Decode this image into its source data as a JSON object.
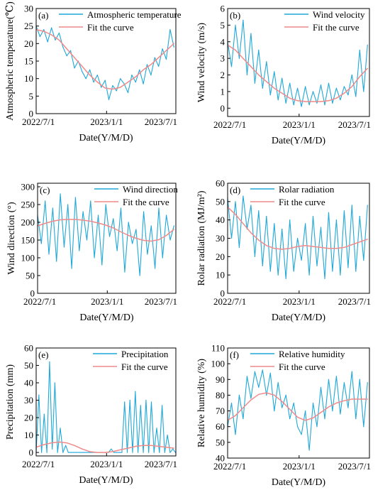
{
  "page": {
    "background": "#ffffff"
  },
  "colors": {
    "raw": "#1fa8d8",
    "fit": "#f08a8a",
    "axis": "#000000"
  },
  "chart_data": [
    {
      "type": "line",
      "panel_label": "(a)",
      "ylabel": "Atmospheric temperature(℃)",
      "xlabel": "Date(Y/M/D)",
      "x_ticks": [
        "2022/7/1",
        "2023/1/1",
        "2023/7/1"
      ],
      "ylim": [
        0,
        30
      ],
      "y_ticks": [
        0,
        5,
        10,
        15,
        20,
        25,
        30
      ],
      "legend_position": "top-center",
      "series": [
        {
          "name": "Atmospheric temperature",
          "kind": "raw",
          "x": [
            "2022-07-01",
            "2022-07-11",
            "2022-07-21",
            "2022-07-31",
            "2022-08-10",
            "2022-08-20",
            "2022-08-30",
            "2022-09-09",
            "2022-09-19",
            "2022-09-29",
            "2022-10-09",
            "2022-10-19",
            "2022-10-29",
            "2022-11-08",
            "2022-11-18",
            "2022-11-28",
            "2022-12-08",
            "2022-12-18",
            "2022-12-28",
            "2023-01-07",
            "2023-01-17",
            "2023-01-27",
            "2023-02-06",
            "2023-02-16",
            "2023-02-26",
            "2023-03-08",
            "2023-03-18",
            "2023-03-28",
            "2023-04-07",
            "2023-04-17",
            "2023-04-27",
            "2023-05-07",
            "2023-05-17",
            "2023-05-27",
            "2023-06-06",
            "2023-06-16",
            "2023-06-26"
          ],
          "y": [
            25.0,
            22.0,
            24.0,
            20.5,
            24.5,
            21.0,
            23.0,
            19.0,
            16.5,
            18.0,
            13.0,
            15.0,
            12.0,
            10.0,
            12.5,
            9.0,
            11.0,
            7.5,
            9.5,
            4.0,
            8.0,
            6.5,
            10.0,
            8.5,
            6.0,
            11.0,
            9.0,
            12.5,
            8.5,
            14.0,
            11.0,
            16.0,
            13.5,
            18.5,
            15.5,
            24.0,
            19.0
          ]
        },
        {
          "name": "Fit the curve",
          "kind": "fit",
          "x": [
            "2022-07-01",
            "2022-07-21",
            "2022-08-10",
            "2022-08-30",
            "2022-09-19",
            "2022-10-09",
            "2022-10-29",
            "2022-11-18",
            "2022-12-08",
            "2022-12-28",
            "2023-01-17",
            "2023-02-06",
            "2023-02-26",
            "2023-03-18",
            "2023-04-07",
            "2023-04-27",
            "2023-05-17",
            "2023-06-06",
            "2023-06-26"
          ],
          "y": [
            24.0,
            23.5,
            22.5,
            21.0,
            18.5,
            16.0,
            13.5,
            11.0,
            9.0,
            7.3,
            7.0,
            7.5,
            9.0,
            10.5,
            12.5,
            14.0,
            16.0,
            18.0,
            20.0
          ]
        }
      ]
    },
    {
      "type": "line",
      "panel_label": "(b)",
      "ylabel": "Wind velocity (m/s)",
      "xlabel": "Date(Y/M/D)",
      "x_ticks": [
        "2022/7/1",
        "2023/1/1",
        "2023/7/1"
      ],
      "ylim": [
        -0.5,
        6
      ],
      "y_ticks": [
        0,
        1,
        2,
        3,
        4,
        5,
        6
      ],
      "legend_position": "top-right",
      "series": [
        {
          "name": "Wind velocity",
          "kind": "raw",
          "x": [
            "2022-07-01",
            "2022-07-11",
            "2022-07-21",
            "2022-07-31",
            "2022-08-10",
            "2022-08-20",
            "2022-08-30",
            "2022-09-09",
            "2022-09-19",
            "2022-09-29",
            "2022-10-09",
            "2022-10-19",
            "2022-10-29",
            "2022-11-08",
            "2022-11-18",
            "2022-11-28",
            "2022-12-08",
            "2022-12-18",
            "2022-12-28",
            "2023-01-07",
            "2023-01-17",
            "2023-01-27",
            "2023-02-06",
            "2023-02-16",
            "2023-02-26",
            "2023-03-08",
            "2023-03-18",
            "2023-03-28",
            "2023-04-07",
            "2023-04-17",
            "2023-04-27",
            "2023-05-07",
            "2023-05-17",
            "2023-05-27",
            "2023-06-06",
            "2023-06-16",
            "2023-06-26"
          ],
          "y": [
            4.0,
            2.5,
            5.0,
            3.0,
            5.3,
            2.0,
            4.5,
            1.5,
            3.5,
            1.2,
            2.8,
            0.8,
            2.2,
            0.5,
            1.8,
            0.3,
            1.5,
            0.2,
            1.2,
            0.1,
            1.3,
            0.2,
            1.0,
            0.3,
            1.4,
            0.2,
            1.5,
            0.3,
            1.2,
            0.5,
            1.3,
            0.8,
            2.0,
            0.7,
            3.5,
            1.0,
            3.8
          ]
        },
        {
          "name": "Fit the curve",
          "kind": "fit",
          "x": [
            "2022-07-01",
            "2022-07-21",
            "2022-08-10",
            "2022-08-30",
            "2022-09-19",
            "2022-10-09",
            "2022-10-29",
            "2022-11-18",
            "2022-12-08",
            "2022-12-28",
            "2023-01-17",
            "2023-02-06",
            "2023-02-26",
            "2023-03-18",
            "2023-04-07",
            "2023-04-27",
            "2023-05-17",
            "2023-06-06",
            "2023-06-26"
          ],
          "y": [
            3.8,
            3.5,
            3.0,
            2.5,
            2.0,
            1.6,
            1.2,
            0.9,
            0.6,
            0.45,
            0.4,
            0.4,
            0.4,
            0.45,
            0.6,
            0.9,
            1.3,
            1.9,
            2.4
          ]
        }
      ]
    },
    {
      "type": "line",
      "panel_label": "(c)",
      "ylabel": "Wind direction (°)",
      "xlabel": "Date(Y/M/D)",
      "x_ticks": [
        "2022/7/1",
        "2023/1/1",
        "2023/7/1"
      ],
      "ylim": [
        0,
        310
      ],
      "y_ticks": [
        0,
        50,
        100,
        150,
        200,
        250,
        300
      ],
      "legend_position": "top-right",
      "series": [
        {
          "name": "Wind direction",
          "kind": "raw",
          "x": [
            "2022-07-01",
            "2022-07-11",
            "2022-07-21",
            "2022-07-31",
            "2022-08-10",
            "2022-08-20",
            "2022-08-30",
            "2022-09-09",
            "2022-09-19",
            "2022-09-29",
            "2022-10-09",
            "2022-10-19",
            "2022-10-29",
            "2022-11-08",
            "2022-11-18",
            "2022-11-28",
            "2022-12-08",
            "2022-12-18",
            "2022-12-28",
            "2023-01-07",
            "2023-01-17",
            "2023-01-27",
            "2023-02-06",
            "2023-02-16",
            "2023-02-26",
            "2023-03-08",
            "2023-03-18",
            "2023-03-28",
            "2023-04-07",
            "2023-04-17",
            "2023-04-27",
            "2023-05-07",
            "2023-05-17",
            "2023-05-27",
            "2023-06-06",
            "2023-06-16",
            "2023-06-26"
          ],
          "y": [
            220,
            140,
            260,
            110,
            240,
            90,
            280,
            130,
            250,
            70,
            270,
            120,
            230,
            150,
            260,
            100,
            220,
            80,
            250,
            160,
            210,
            120,
            240,
            60,
            200,
            140,
            180,
            50,
            230,
            110,
            190,
            70,
            240,
            100,
            220,
            150,
            190
          ]
        },
        {
          "name": "Fit the curve",
          "kind": "fit",
          "x": [
            "2022-07-01",
            "2022-07-21",
            "2022-08-10",
            "2022-08-30",
            "2022-09-19",
            "2022-10-09",
            "2022-10-29",
            "2022-11-18",
            "2022-12-08",
            "2022-12-28",
            "2023-01-17",
            "2023-02-06",
            "2023-02-26",
            "2023-03-18",
            "2023-04-07",
            "2023-04-27",
            "2023-05-17",
            "2023-06-06",
            "2023-06-26"
          ],
          "y": [
            190,
            197,
            203,
            207,
            208,
            208,
            206,
            203,
            198,
            192,
            184,
            173,
            163,
            155,
            149,
            147,
            151,
            163,
            180
          ]
        }
      ]
    },
    {
      "type": "line",
      "panel_label": "(d)",
      "ylabel": "Rolar radiation (MJ/m²)",
      "xlabel": "Date(Y/M/D)",
      "x_ticks": [
        "2022/7/1",
        "2023/1/1",
        "2023/7/1"
      ],
      "ylim": [
        0,
        60
      ],
      "y_ticks": [
        0,
        10,
        20,
        30,
        40,
        50,
        60
      ],
      "legend_position": "top-center",
      "series": [
        {
          "name": "Rolar radiation",
          "kind": "raw",
          "x": [
            "2022-07-01",
            "2022-07-11",
            "2022-07-21",
            "2022-07-31",
            "2022-08-10",
            "2022-08-20",
            "2022-08-30",
            "2022-09-09",
            "2022-09-19",
            "2022-09-29",
            "2022-10-09",
            "2022-10-19",
            "2022-10-29",
            "2022-11-08",
            "2022-11-18",
            "2022-11-28",
            "2022-12-08",
            "2022-12-18",
            "2022-12-28",
            "2023-01-07",
            "2023-01-17",
            "2023-01-27",
            "2023-02-06",
            "2023-02-16",
            "2023-02-26",
            "2023-03-08",
            "2023-03-18",
            "2023-03-28",
            "2023-04-07",
            "2023-04-17",
            "2023-04-27",
            "2023-05-07",
            "2023-05-17",
            "2023-05-27",
            "2023-06-06",
            "2023-06-16",
            "2023-06-26"
          ],
          "y": [
            52,
            30,
            50,
            25,
            53,
            35,
            48,
            20,
            45,
            15,
            42,
            12,
            38,
            10,
            35,
            8,
            40,
            12,
            30,
            18,
            38,
            10,
            42,
            15,
            36,
            8,
            44,
            12,
            40,
            10,
            45,
            14,
            48,
            12,
            42,
            18,
            48
          ]
        },
        {
          "name": "Fit the curve",
          "kind": "fit",
          "x": [
            "2022-07-01",
            "2022-07-21",
            "2022-08-10",
            "2022-08-30",
            "2022-09-19",
            "2022-10-09",
            "2022-10-29",
            "2022-11-18",
            "2022-12-08",
            "2022-12-28",
            "2023-01-17",
            "2023-02-06",
            "2023-02-26",
            "2023-03-18",
            "2023-04-07",
            "2023-04-27",
            "2023-05-17",
            "2023-06-06",
            "2023-06-26"
          ],
          "y": [
            47,
            43,
            38,
            33,
            29,
            26,
            24.5,
            24,
            24.5,
            25.5,
            26,
            25.5,
            25,
            24.5,
            24.5,
            25,
            26.5,
            28,
            29.5
          ]
        }
      ]
    },
    {
      "type": "line",
      "panel_label": "(e)",
      "ylabel": "Precipitation (mm)",
      "xlabel": "Date(Y/M/D)",
      "x_ticks": [
        "2022/7/1",
        "2023/1/1",
        "2023/7/1"
      ],
      "ylim": [
        -2,
        60
      ],
      "y_ticks": [
        0,
        10,
        20,
        30,
        40,
        50,
        60
      ],
      "legend_position": "top-right",
      "series": [
        {
          "name": "Precipitation",
          "kind": "raw",
          "x": [
            "2022-07-01",
            "2022-07-08",
            "2022-07-15",
            "2022-07-22",
            "2022-07-29",
            "2022-08-05",
            "2022-08-12",
            "2022-08-19",
            "2022-08-26",
            "2022-09-02",
            "2022-09-09",
            "2022-09-16",
            "2022-09-23",
            "2022-09-30",
            "2022-10-07",
            "2022-10-14",
            "2022-10-21",
            "2022-10-28",
            "2022-11-04",
            "2022-11-11",
            "2022-11-18",
            "2022-11-25",
            "2022-12-02",
            "2022-12-09",
            "2022-12-16",
            "2022-12-23",
            "2022-12-30",
            "2023-01-06",
            "2023-01-13",
            "2023-01-20",
            "2023-01-27",
            "2023-02-03",
            "2023-02-10",
            "2023-02-17",
            "2023-02-24",
            "2023-03-03",
            "2023-03-10",
            "2023-03-17",
            "2023-03-24",
            "2023-03-31",
            "2023-04-07",
            "2023-04-14",
            "2023-04-21",
            "2023-04-28",
            "2023-05-05",
            "2023-05-12",
            "2023-05-19",
            "2023-05-26",
            "2023-06-02",
            "2023-06-09",
            "2023-06-16",
            "2023-06-23",
            "2023-06-30"
          ],
          "y": [
            0,
            33,
            0,
            22,
            0,
            52,
            2,
            40,
            0,
            14,
            0,
            4,
            0,
            0,
            0,
            0,
            0,
            0,
            0,
            0,
            0,
            0,
            0,
            0,
            0,
            0,
            0,
            0,
            2,
            0,
            0,
            0,
            0,
            29,
            0,
            30,
            0,
            35,
            0,
            27,
            0,
            30,
            0,
            29,
            0,
            14,
            0,
            27,
            0,
            10,
            0,
            2,
            0
          ]
        },
        {
          "name": "Fit the curve",
          "kind": "fit",
          "x": [
            "2022-07-01",
            "2022-07-21",
            "2022-08-10",
            "2022-08-30",
            "2022-09-19",
            "2022-10-09",
            "2022-10-29",
            "2022-11-18",
            "2022-12-08",
            "2022-12-28",
            "2023-01-17",
            "2023-02-06",
            "2023-02-26",
            "2023-03-18",
            "2023-04-07",
            "2023-04-27",
            "2023-05-17",
            "2023-06-06",
            "2023-06-26"
          ],
          "y": [
            3,
            4.5,
            5.5,
            6,
            5.5,
            4,
            2,
            0.5,
            0,
            0,
            0.5,
            1.5,
            2.5,
            3.5,
            4,
            4,
            3.5,
            3,
            2.5
          ]
        }
      ]
    },
    {
      "type": "line",
      "panel_label": "(f)",
      "ylabel": "Relative humidity (%)",
      "xlabel": "Date(Y/M/D)",
      "x_ticks": [
        "2022/7/1",
        "2023/1/1",
        "2023/7/1"
      ],
      "ylim": [
        40,
        110
      ],
      "y_ticks": [
        40,
        50,
        60,
        70,
        80,
        90,
        100,
        110
      ],
      "legend_position": "top-center",
      "series": [
        {
          "name": "Relative humidity",
          "kind": "raw",
          "x": [
            "2022-07-01",
            "2022-07-11",
            "2022-07-21",
            "2022-07-31",
            "2022-08-10",
            "2022-08-20",
            "2022-08-30",
            "2022-09-09",
            "2022-09-19",
            "2022-09-29",
            "2022-10-09",
            "2022-10-19",
            "2022-10-29",
            "2022-11-08",
            "2022-11-18",
            "2022-11-28",
            "2022-12-08",
            "2022-12-18",
            "2022-12-28",
            "2023-01-07",
            "2023-01-17",
            "2023-01-27",
            "2023-02-06",
            "2023-02-16",
            "2023-02-26",
            "2023-03-08",
            "2023-03-18",
            "2023-03-28",
            "2023-04-07",
            "2023-04-17",
            "2023-04-27",
            "2023-05-07",
            "2023-05-17",
            "2023-05-27",
            "2023-06-06",
            "2023-06-16",
            "2023-06-26"
          ],
          "y": [
            60,
            75,
            55,
            80,
            65,
            92,
            78,
            95,
            85,
            96,
            80,
            94,
            70,
            88,
            72,
            80,
            65,
            75,
            60,
            55,
            70,
            45,
            75,
            60,
            85,
            65,
            90,
            70,
            92,
            68,
            88,
            72,
            95,
            65,
            90,
            60,
            88
          ]
        },
        {
          "name": "Fit the curve",
          "kind": "fit",
          "x": [
            "2022-07-01",
            "2022-07-21",
            "2022-08-10",
            "2022-08-30",
            "2022-09-19",
            "2022-10-09",
            "2022-10-29",
            "2022-11-18",
            "2022-12-08",
            "2022-12-28",
            "2023-01-17",
            "2023-02-06",
            "2023-02-26",
            "2023-03-18",
            "2023-04-07",
            "2023-04-27",
            "2023-05-17",
            "2023-06-06",
            "2023-06-26"
          ],
          "y": [
            64,
            67,
            72,
            77,
            80.5,
            81.5,
            80,
            76,
            71,
            66,
            64,
            65.5,
            69,
            72.5,
            75,
            76.5,
            77.5,
            77.5,
            77.5
          ]
        }
      ]
    }
  ]
}
